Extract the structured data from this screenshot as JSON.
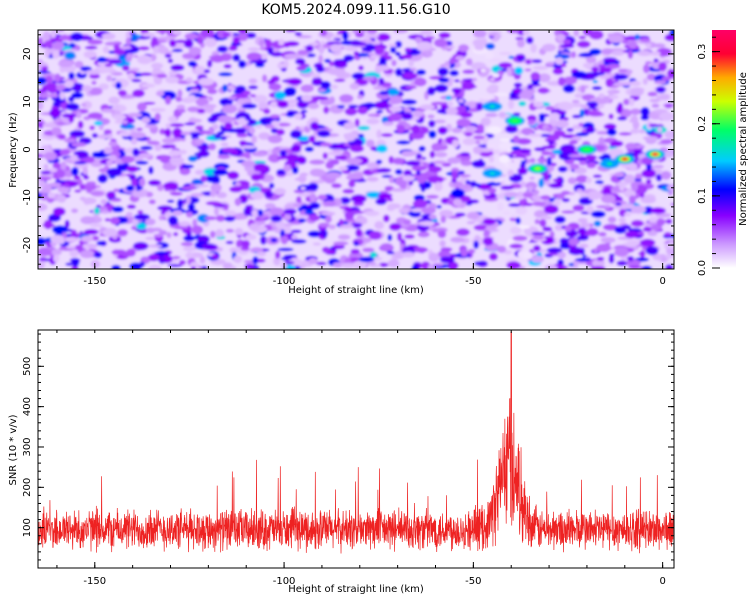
{
  "title": "KOM5.2024.099.11.56.G10",
  "chart_data": [
    {
      "type": "heatmap",
      "xlabel": "Height of straight line (km)",
      "ylabel": "Frequency (Hz)",
      "xlim": [
        -165,
        3
      ],
      "ylim": [
        -25,
        25
      ],
      "x_ticks": [
        -150,
        -100,
        -50,
        0
      ],
      "y_ticks": [
        -20,
        -10,
        0,
        10,
        20
      ],
      "colorbar": {
        "label": "Normalized spectral amplitude",
        "range": [
          0.0,
          0.33
        ],
        "ticks": [
          0.0,
          0.1,
          0.2,
          0.3
        ],
        "colormap": [
          "#ffffff",
          "#cc99ff",
          "#8800ff",
          "#0000ff",
          "#00ccff",
          "#00ff66",
          "#ccff00",
          "#ffaa00",
          "#ff0033",
          "#ff0066"
        ]
      },
      "hotspots": [
        {
          "x": -2,
          "y": -1,
          "value": 0.32
        },
        {
          "x": -10,
          "y": -2,
          "value": 0.3
        },
        {
          "x": -20,
          "y": 0,
          "value": 0.2
        },
        {
          "x": -33,
          "y": -4,
          "value": 0.22
        },
        {
          "x": -39,
          "y": 6,
          "value": 0.2
        },
        {
          "x": -45,
          "y": 9,
          "value": 0.17
        },
        {
          "x": -45,
          "y": -5,
          "value": 0.16
        },
        {
          "x": -14,
          "y": -3,
          "value": 0.18
        }
      ]
    },
    {
      "type": "line",
      "xlabel": "Height of straight line (km)",
      "ylabel": "SNR (10 * v/v)",
      "xlim": [
        -165,
        3
      ],
      "ylim": [
        0,
        590
      ],
      "x_ticks": [
        -150,
        -100,
        -50,
        0
      ],
      "y_ticks": [
        100,
        200,
        300,
        400,
        500
      ],
      "color": "#ee2222",
      "baseline_mean": 95,
      "noise_max": 270,
      "peak": {
        "x": -40,
        "y": 585
      },
      "peak_region": [
        -44,
        -37
      ]
    }
  ]
}
